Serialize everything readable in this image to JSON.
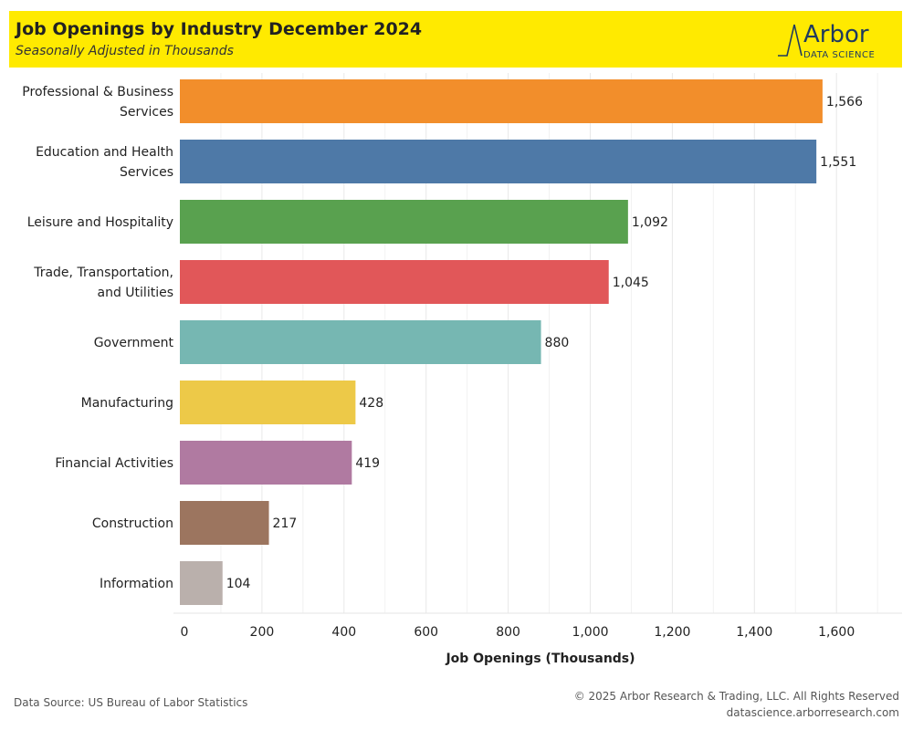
{
  "header": {
    "title": "Job Openings by Industry December 2024",
    "subtitle": "Seasonally Adjusted in Thousands",
    "logo_text": "Arbor",
    "logo_sub": "DATA SCIENCE"
  },
  "footer": {
    "source": "Data Source: US Bureau of Labor Statistics",
    "copyright": "© 2025 Arbor Research & Trading, LLC. All Rights Reserved",
    "url": "datascience.arborresearch.com"
  },
  "chart_data": {
    "type": "bar",
    "orientation": "horizontal",
    "title": "Job Openings by Industry December 2024",
    "subtitle": "Seasonally Adjusted in Thousands",
    "xlabel": "Job Openings (Thousands)",
    "ylabel": "",
    "xlim": [
      0,
      1700
    ],
    "xticks": [
      0,
      200,
      400,
      600,
      800,
      1000,
      1200,
      1400,
      1600
    ],
    "xtick_labels": [
      "0",
      "200",
      "400",
      "600",
      "800",
      "1,000",
      "1,200",
      "1,400",
      "1,600"
    ],
    "grid": true,
    "categories": [
      "Professional & Business Services",
      "Education and Health Services",
      "Leisure and Hospitality",
      "Trade, Transportation, and Utilities",
      "Government",
      "Manufacturing",
      "Financial Activities",
      "Construction",
      "Information"
    ],
    "category_lines": [
      [
        "Professional & Business",
        "Services"
      ],
      [
        "Education and Health",
        "Services"
      ],
      [
        "Leisure and Hospitality"
      ],
      [
        "Trade, Transportation,",
        "and Utilities"
      ],
      [
        "Government"
      ],
      [
        "Manufacturing"
      ],
      [
        "Financial Activities"
      ],
      [
        "Construction"
      ],
      [
        "Information"
      ]
    ],
    "values": [
      1566,
      1551,
      1092,
      1045,
      880,
      428,
      419,
      217,
      104
    ],
    "value_labels": [
      "1,566",
      "1,551",
      "1,092",
      "1,045",
      "880",
      "428",
      "419",
      "217",
      "104"
    ],
    "colors": [
      "#f28e2b",
      "#4e79a7",
      "#59a14f",
      "#e15759",
      "#76b7b2",
      "#edc948",
      "#b07aa1",
      "#9c755f",
      "#bab0ac"
    ]
  }
}
